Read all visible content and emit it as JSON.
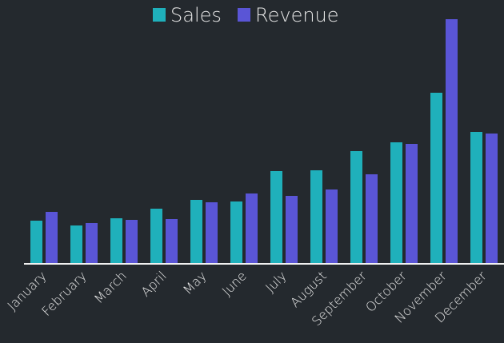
{
  "chart_data": {
    "type": "bar",
    "categories": [
      "January",
      "February",
      "March",
      "April",
      "May",
      "June",
      "July",
      "August",
      "September",
      "October",
      "November",
      "December"
    ],
    "series": [
      {
        "name": "Sales",
        "color": "#1fb0bb",
        "values": [
          54,
          48,
          57,
          69,
          80,
          78,
          116,
          117,
          141,
          152,
          214,
          165
        ]
      },
      {
        "name": "Revenue",
        "color": "#5a55d6",
        "values": [
          65,
          51,
          55,
          56,
          77,
          88,
          85,
          93,
          112,
          150,
          306,
          163
        ]
      }
    ],
    "ylim": [
      0,
      306
    ],
    "legend": "top"
  }
}
